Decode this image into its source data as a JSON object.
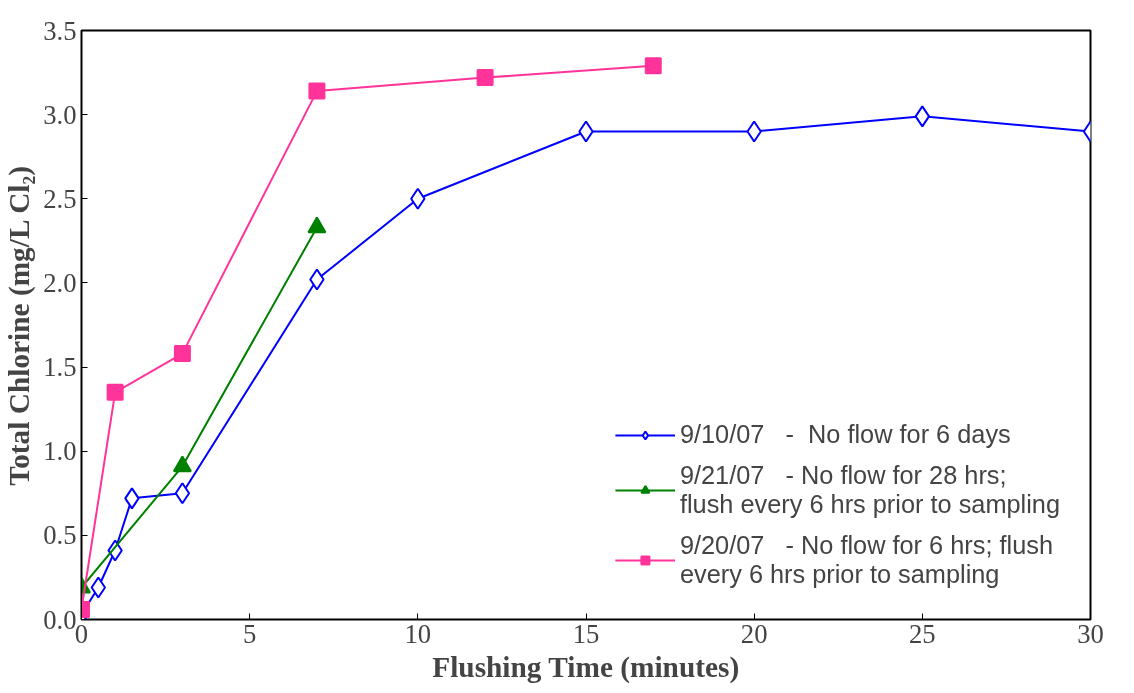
{
  "chart_data": {
    "type": "line",
    "xlabel": "Flushing Time (minutes)",
    "ylabel": "Total Chlorine (mg/L Cl₂)",
    "xlim": [
      0,
      30
    ],
    "xticks": [
      0,
      5,
      10,
      15,
      20,
      25,
      30
    ],
    "ylim": [
      0,
      3.5
    ],
    "yticks": [
      {
        "value": 0,
        "label": "0.0"
      },
      {
        "value": 0.5,
        "label": "0.5"
      },
      {
        "value": 1,
        "label": "1.0"
      },
      {
        "value": 1.5,
        "label": "1.5"
      },
      {
        "value": 2,
        "label": "2.0"
      },
      {
        "value": 2.5,
        "label": "2.5"
      },
      {
        "value": 3,
        "label": "3.0"
      },
      {
        "value": 3.5,
        "label": "3.5"
      }
    ],
    "grid": false,
    "legend": "bottom right",
    "line_style": "solid",
    "series": [
      {
        "name": "9/10/07   -  No flow for 6 days",
        "color": "#0000ff",
        "marker": "diamond",
        "x": [
          0,
          0.5,
          1,
          1.5,
          3,
          7,
          10,
          15,
          20,
          25,
          30
        ],
        "values": [
          0.03,
          0.19,
          0.41,
          0.72,
          0.75,
          2.02,
          2.5,
          2.9,
          2.9,
          2.99,
          2.9
        ]
      },
      {
        "name": "9/21/07   - No flow for 28 hrs; flush every 6 hrs prior to sampling",
        "color": "#008000",
        "marker": "triangle",
        "x": [
          0,
          3,
          7
        ],
        "values": [
          0.19,
          0.91,
          2.33
        ]
      },
      {
        "name": "9/20/07   - No flow for 6 hrs; flush every 6 hrs prior to sampling",
        "color": "#ff3399",
        "marker": "square",
        "x": [
          0,
          1,
          3,
          7,
          12,
          17
        ],
        "values": [
          0.06,
          1.35,
          1.58,
          3.14,
          3.22,
          3.29
        ]
      }
    ]
  }
}
